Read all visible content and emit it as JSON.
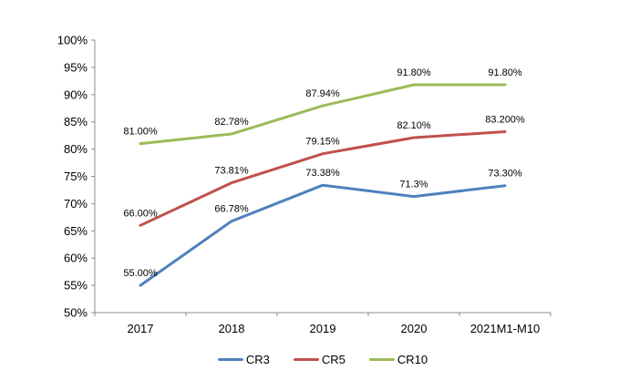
{
  "chart_data": {
    "type": "line",
    "title": "",
    "xlabel": "",
    "ylabel": "",
    "categories": [
      "2017",
      "2018",
      "2019",
      "2020",
      "2021M1-M10"
    ],
    "series": [
      {
        "name": "CR3",
        "color": "#4F81BD",
        "values": [
          55.0,
          66.78,
          73.38,
          71.3,
          73.3
        ],
        "point_labels": [
          "55.00%",
          "66.78%",
          "73.38%",
          "71.3%",
          "73.30%"
        ]
      },
      {
        "name": "CR5",
        "color": "#C0504D",
        "values": [
          66.0,
          73.81,
          79.15,
          82.1,
          83.2
        ],
        "point_labels": [
          "66.00%",
          "73.81%",
          "79.15%",
          "82.10%",
          "83.200%"
        ]
      },
      {
        "name": "CR10",
        "color": "#9BBB59",
        "values": [
          81.0,
          82.78,
          87.94,
          91.8,
          91.8
        ],
        "point_labels": [
          "81.00%",
          "82.78%",
          "87.94%",
          "91.80%",
          "91.80%"
        ]
      }
    ],
    "ylim": [
      50,
      100
    ],
    "ytick_step": 5,
    "ytick_labels": [
      "50%",
      "55%",
      "60%",
      "65%",
      "70%",
      "75%",
      "80%",
      "85%",
      "90%",
      "95%",
      "100%"
    ],
    "grid": false,
    "legend_position": "bottom",
    "axis_color": "#8C8C8C",
    "text_color": "#000000",
    "background_color": "#FFFFFF"
  }
}
